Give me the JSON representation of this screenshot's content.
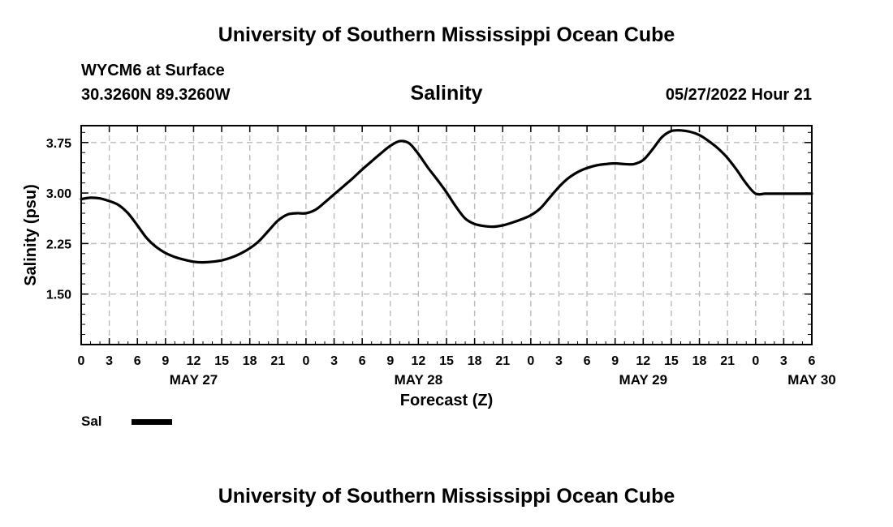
{
  "header": {
    "title": "University of Southern Mississippi Ocean Cube",
    "station": "WYCM6 at Surface",
    "coords": "30.3260N  89.3260W",
    "run_time": "05/27/2022 Hour 21"
  },
  "footer": {
    "title": "University of Southern Mississippi Ocean Cube"
  },
  "chart_data": {
    "type": "line",
    "title": "Salinity",
    "xlabel": "Forecast (Z)",
    "ylabel": "Salinity (psu)",
    "x_unit": "forecast hours from May 27 00Z",
    "xlim": [
      0,
      78
    ],
    "ylim": [
      0.75,
      4.0
    ],
    "x_tick_labels": [
      "0",
      "3",
      "6",
      "9",
      "12",
      "15",
      "18",
      "21",
      "0",
      "3",
      "6",
      "9",
      "12",
      "15",
      "18",
      "21",
      "0",
      "3",
      "6",
      "9",
      "12",
      "15",
      "18",
      "21",
      "0",
      "3",
      "6"
    ],
    "date_labels": [
      {
        "x": 12,
        "label": "MAY 27"
      },
      {
        "x": 36,
        "label": "MAY 28"
      },
      {
        "x": 60,
        "label": "MAY 29"
      },
      {
        "x": 78,
        "label": "MAY 30"
      }
    ],
    "y_ticks": [
      1.5,
      2.25,
      3.0,
      3.75
    ],
    "y_tick_labels": [
      "1.50",
      "2.25",
      "3.00",
      "3.75"
    ],
    "grid": true,
    "series": [
      {
        "name": "Sal",
        "color": "#000000",
        "x": [
          0,
          1,
          2,
          3,
          4,
          5,
          6,
          7,
          8,
          9,
          10,
          11,
          12,
          13,
          14,
          15,
          16,
          17,
          18,
          19,
          20,
          21,
          22,
          23,
          24,
          25,
          26,
          27,
          28,
          29,
          30,
          31,
          32,
          33,
          34,
          35,
          36,
          37,
          38,
          39,
          40,
          41,
          42,
          43,
          44,
          45,
          46,
          47,
          48,
          49,
          50,
          51,
          52,
          53,
          54,
          55,
          56,
          57,
          58,
          59,
          60,
          61,
          62,
          63,
          64,
          65,
          66,
          67,
          68,
          69,
          70,
          71,
          72,
          73,
          74,
          75,
          76,
          77,
          78
        ],
        "values": [
          2.91,
          2.93,
          2.92,
          2.88,
          2.82,
          2.7,
          2.52,
          2.33,
          2.2,
          2.11,
          2.05,
          2.01,
          1.98,
          1.97,
          1.98,
          2.0,
          2.04,
          2.1,
          2.18,
          2.29,
          2.44,
          2.59,
          2.68,
          2.7,
          2.7,
          2.75,
          2.86,
          2.98,
          3.1,
          3.22,
          3.35,
          3.47,
          3.59,
          3.7,
          3.77,
          3.74,
          3.58,
          3.38,
          3.2,
          3.01,
          2.8,
          2.62,
          2.54,
          2.51,
          2.5,
          2.52,
          2.56,
          2.61,
          2.67,
          2.77,
          2.93,
          3.09,
          3.22,
          3.31,
          3.37,
          3.41,
          3.43,
          3.44,
          3.43,
          3.43,
          3.49,
          3.65,
          3.83,
          3.92,
          3.93,
          3.91,
          3.86,
          3.77,
          3.66,
          3.52,
          3.34,
          3.14,
          2.99,
          2.99,
          2.99,
          2.99,
          2.99,
          2.99,
          2.99
        ]
      }
    ]
  }
}
